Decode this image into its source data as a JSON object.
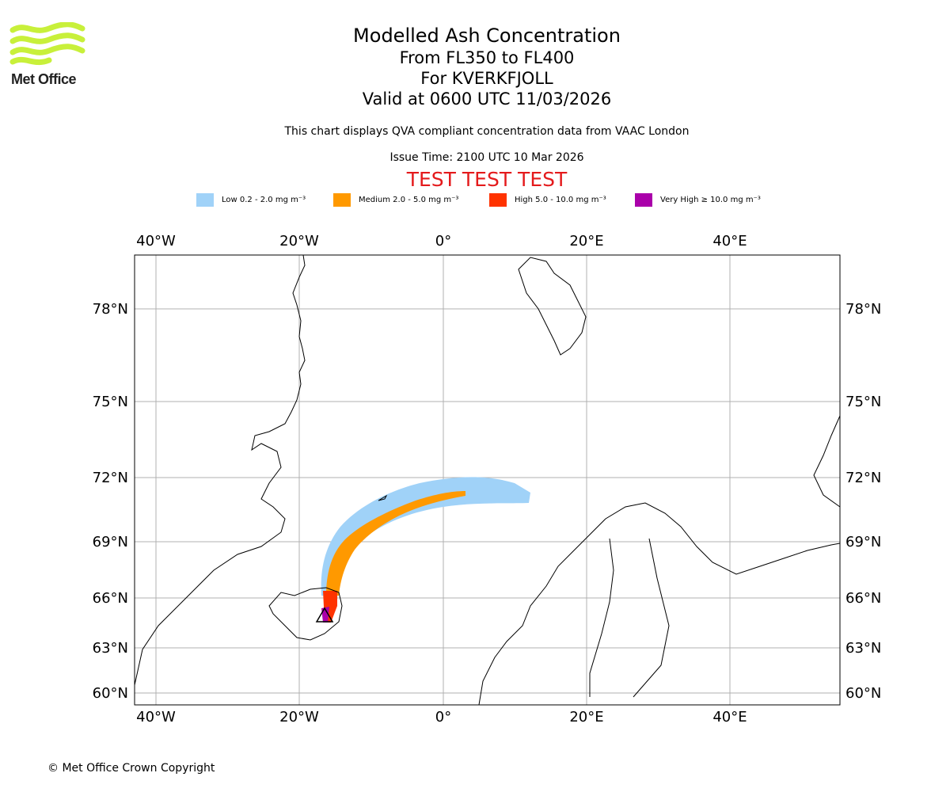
{
  "logo": {
    "text": "Met Office",
    "color": "#c8f03a"
  },
  "header": {
    "title": "Modelled Ash Concentration",
    "levels": "From FL350 to FL400",
    "volcano": "For KVERKFJOLL",
    "valid": "Valid at 0600 UTC 11/03/2026",
    "description": "This chart displays QVA compliant concentration data from VAAC London",
    "issue_time": "Issue Time: 2100 UTC 10 Mar 2026",
    "test_banner": "TEST TEST TEST"
  },
  "legend": [
    {
      "name": "Low",
      "label": "Low 0.2 - 2.0 mg m⁻³",
      "color": "#a0d2f8"
    },
    {
      "name": "Medium",
      "label": "Medium 2.0 - 5.0 mg m⁻³",
      "color": "#ff9900"
    },
    {
      "name": "High",
      "label": "High 5.0 - 10.0 mg m⁻³",
      "color": "#ff3300"
    },
    {
      "name": "Very High",
      "label": "Very High  ≥  10.0 mg m⁻³",
      "color": "#aa00aa"
    }
  ],
  "map": {
    "lon_ticks": [
      "40°W",
      "20°W",
      "0°",
      "20°E",
      "40°E"
    ],
    "lat_ticks": [
      "78°N",
      "75°N",
      "72°N",
      "69°N",
      "66°N",
      "63°N",
      "60°N"
    ],
    "gridline_color": "#b0b0b0"
  },
  "footer": {
    "copyright": "© Met Office Crown Copyright"
  }
}
